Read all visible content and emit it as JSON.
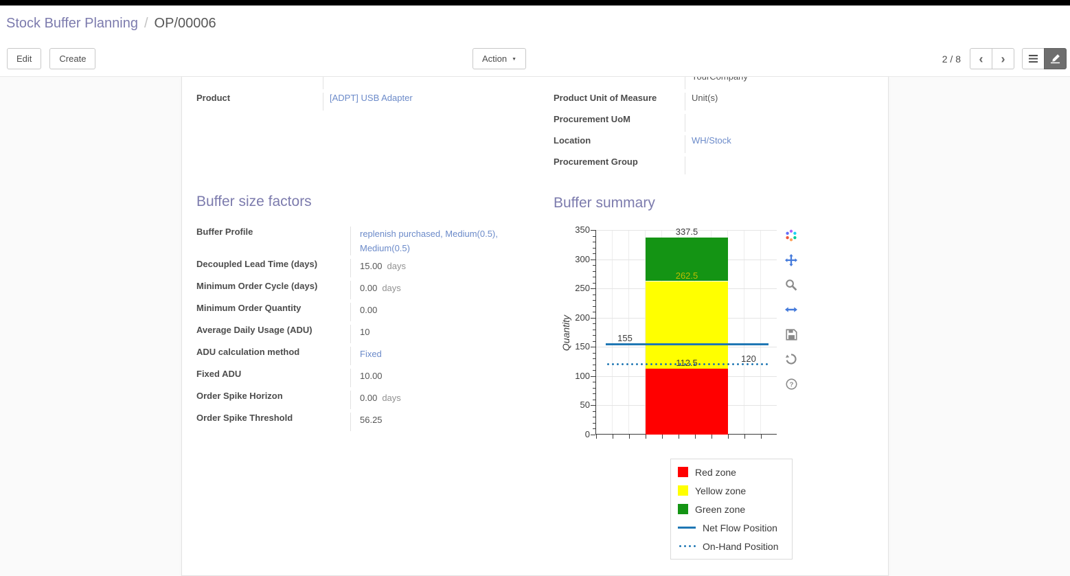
{
  "breadcrumb": {
    "parent": "Stock Buffer Planning",
    "separator": "/",
    "current": "OP/00006"
  },
  "control_bar": {
    "edit_label": "Edit",
    "create_label": "Create",
    "action_label": "Action",
    "caret_glyph": "▼",
    "pager_value": "2 / 8",
    "prev_glyph": "‹",
    "next_glyph": "›"
  },
  "form": {
    "partial_company_value": "YourCompany",
    "product_group": [
      {
        "label": "Product",
        "value": "[ADPT] USB Adapter",
        "link": true
      }
    ],
    "details_group": [
      {
        "label": "Product Unit of Measure",
        "value": "Unit(s)",
        "link": false
      },
      {
        "label": "Procurement UoM",
        "value": "",
        "link": false
      },
      {
        "label": "Location",
        "value": "WH/Stock",
        "link": true
      },
      {
        "label": "Procurement Group",
        "value": "",
        "link": false
      }
    ],
    "factors_title": "Buffer size factors",
    "summary_title": "Buffer summary",
    "factors_group": [
      {
        "label": "Buffer Profile",
        "value": "replenish purchased, Medium(0.5), Medium(0.5)",
        "link": true
      },
      {
        "label": "Decoupled Lead Time (days)",
        "value": "15.00",
        "suffix": "days"
      },
      {
        "label": "Minimum Order Cycle (days)",
        "value": "0.00",
        "suffix": "days"
      },
      {
        "label": "Minimum Order Quantity",
        "value": "0.00"
      },
      {
        "label": "Average Daily Usage (ADU)",
        "value": "10"
      },
      {
        "label": "ADU calculation method",
        "value": "Fixed",
        "link": true
      },
      {
        "label": "Fixed ADU",
        "value": "10.00"
      },
      {
        "label": "Order Spike Horizon",
        "value": "0.00",
        "suffix": "days"
      },
      {
        "label": "Order Spike Threshold",
        "value": "56.25"
      }
    ]
  },
  "chart_data": {
    "type": "bar",
    "title": "",
    "ylabel": "Quantity",
    "xlabel": "",
    "ylim": [
      0,
      350
    ],
    "yticks": [
      0,
      50,
      100,
      150,
      200,
      250,
      300,
      350
    ],
    "grid": true,
    "zones": [
      {
        "name": "Red zone",
        "from": 0,
        "to": 112.5,
        "color": "#ff0000"
      },
      {
        "name": "Yellow zone",
        "from": 112.5,
        "to": 262.5,
        "color": "#ffff00"
      },
      {
        "name": "Green zone",
        "from": 262.5,
        "to": 337.5,
        "color": "#149414"
      }
    ],
    "lines": [
      {
        "name": "Net Flow Position",
        "value": 155,
        "style": "solid",
        "color": "#1f77b4"
      },
      {
        "name": "On-Hand Position",
        "value": 120,
        "style": "dotted",
        "color": "#1f77b4"
      }
    ],
    "annotations": [
      {
        "text": "337.5",
        "value": 337.5,
        "align": "center",
        "color": "#3a3a3a"
      },
      {
        "text": "262.5",
        "value": 262.5,
        "align": "center",
        "color": "#bdbd00"
      },
      {
        "text": "155",
        "value": 155,
        "align": "left",
        "color": "#3a3a3a"
      },
      {
        "text": "112.5",
        "value": 112.5,
        "align": "center",
        "color": "#3a3a3a"
      },
      {
        "text": "120",
        "value": 120,
        "align": "right",
        "color": "#3a3a3a"
      }
    ],
    "legend_position": "bottom-right",
    "legend": [
      {
        "label": "Red zone",
        "swatch": "square",
        "color": "#ff0000"
      },
      {
        "label": "Yellow zone",
        "swatch": "square",
        "color": "#ffff00"
      },
      {
        "label": "Green zone",
        "swatch": "square",
        "color": "#149414"
      },
      {
        "label": "Net Flow Position",
        "swatch": "line",
        "color": "#1f77b4"
      },
      {
        "label": "On-Hand Position",
        "swatch": "dotted-line",
        "color": "#1f77b4"
      }
    ]
  },
  "chart_toolbar": {
    "buttons": [
      {
        "name": "plotly-logo",
        "active": false
      },
      {
        "name": "pan",
        "active": true
      },
      {
        "name": "zoom",
        "active": false
      },
      {
        "name": "autoscale",
        "active": true
      },
      {
        "name": "save",
        "active": false
      },
      {
        "name": "refresh",
        "active": false
      },
      {
        "name": "help",
        "active": false
      }
    ]
  },
  "colors": {
    "heading": "#7c7bad",
    "link": "#6b8ac9",
    "navbar": "#000000",
    "net_flow_blue": "#1f77b4",
    "active_view_button": "#6e6e6e"
  }
}
